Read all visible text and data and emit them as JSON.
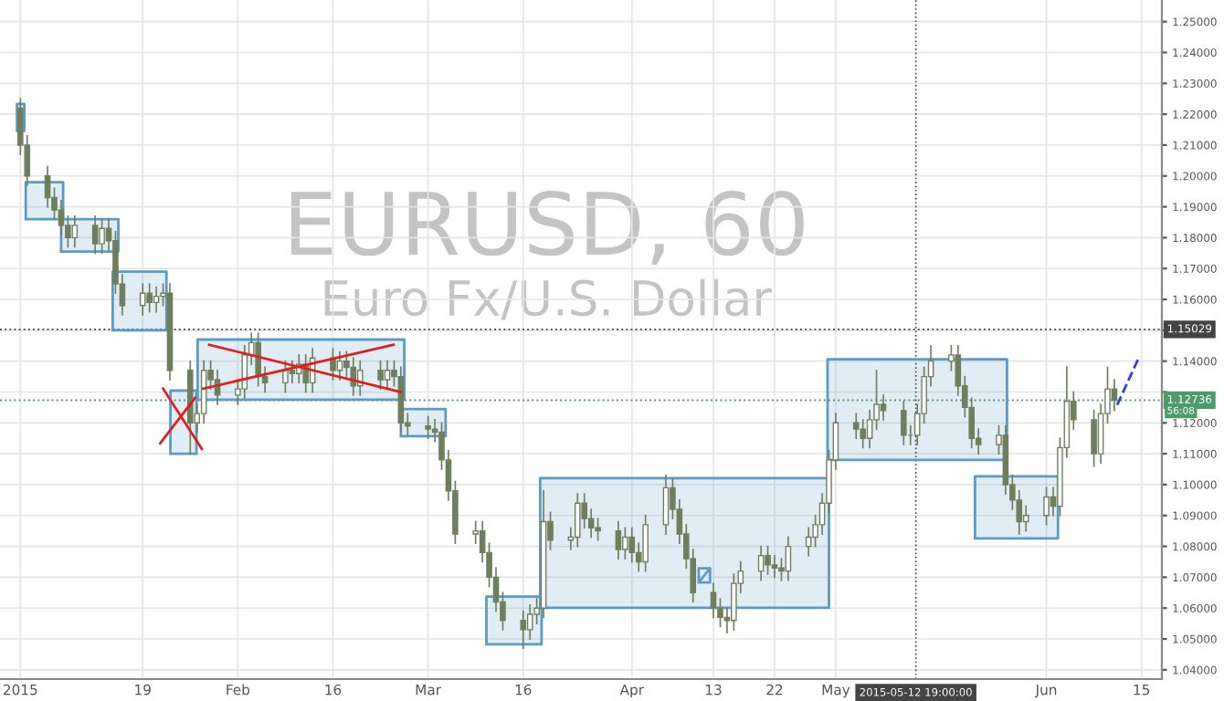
{
  "chart_data": {
    "type": "candlestick",
    "title": "EURUSD, 60",
    "subtitle": "Euro Fx/U.S. Dollar",
    "color": "#6f7f5e",
    "x": [
      "2015-01-01",
      "2015-01-02",
      "2015-01-05",
      "2015-01-06",
      "2015-01-07",
      "2015-01-08",
      "2015-01-09",
      "2015-01-12",
      "2015-01-13",
      "2015-01-14",
      "2015-01-15",
      "2015-01-16",
      "2015-01-19",
      "2015-01-20",
      "2015-01-21",
      "2015-01-22",
      "2015-01-23",
      "2015-01-26",
      "2015-01-27",
      "2015-01-28",
      "2015-01-29",
      "2015-01-30",
      "2015-02-02",
      "2015-02-03",
      "2015-02-04",
      "2015-02-05",
      "2015-02-06",
      "2015-02-09",
      "2015-02-10",
      "2015-02-11",
      "2015-02-12",
      "2015-02-13",
      "2015-02-16",
      "2015-02-17",
      "2015-02-18",
      "2015-02-19",
      "2015-02-20",
      "2015-02-23",
      "2015-02-24",
      "2015-02-25",
      "2015-02-26",
      "2015-02-27",
      "2015-03-02",
      "2015-03-03",
      "2015-03-04",
      "2015-03-05",
      "2015-03-06",
      "2015-03-09",
      "2015-03-10",
      "2015-03-11",
      "2015-03-12",
      "2015-03-13",
      "2015-03-16",
      "2015-03-17",
      "2015-03-18",
      "2015-03-19",
      "2015-03-20",
      "2015-03-23",
      "2015-03-24",
      "2015-03-25",
      "2015-03-26",
      "2015-03-27",
      "2015-03-30",
      "2015-03-31",
      "2015-04-01",
      "2015-04-02",
      "2015-04-03",
      "2015-04-06",
      "2015-04-07",
      "2015-04-08",
      "2015-04-09",
      "2015-04-10",
      "2015-04-13",
      "2015-04-14",
      "2015-04-15",
      "2015-04-16",
      "2015-04-17",
      "2015-04-20",
      "2015-04-21",
      "2015-04-22",
      "2015-04-23",
      "2015-04-24",
      "2015-04-27",
      "2015-04-28",
      "2015-04-29",
      "2015-04-30",
      "2015-05-01",
      "2015-05-04",
      "2015-05-05",
      "2015-05-06",
      "2015-05-07",
      "2015-05-08",
      "2015-05-11",
      "2015-05-12",
      "2015-05-13",
      "2015-05-14",
      "2015-05-15",
      "2015-05-18",
      "2015-05-19",
      "2015-05-20",
      "2015-05-21",
      "2015-05-22",
      "2015-05-25",
      "2015-05-26",
      "2015-05-27",
      "2015-05-28",
      "2015-05-29",
      "2015-06-01",
      "2015-06-02",
      "2015-06-03",
      "2015-06-04",
      "2015-06-05",
      "2015-06-08",
      "2015-06-09",
      "2015-06-10",
      "2015-06-11"
    ],
    "ohlc": [
      [
        1.222,
        1.225,
        1.207,
        1.21
      ],
      [
        1.21,
        1.213,
        1.197,
        1.2
      ],
      [
        1.2,
        1.203,
        1.19,
        1.193
      ],
      [
        1.193,
        1.196,
        1.186,
        1.189
      ],
      [
        1.189,
        1.192,
        1.181,
        1.184
      ],
      [
        1.184,
        1.187,
        1.177,
        1.18
      ],
      [
        1.18,
        1.187,
        1.177,
        1.184
      ],
      [
        1.184,
        1.187,
        1.175,
        1.178
      ],
      [
        1.178,
        1.186,
        1.175,
        1.183
      ],
      [
        1.183,
        1.186,
        1.176,
        1.179
      ],
      [
        1.179,
        1.182,
        1.162,
        1.165
      ],
      [
        1.165,
        1.168,
        1.155,
        1.158
      ],
      [
        1.158,
        1.165,
        1.155,
        1.162
      ],
      [
        1.162,
        1.165,
        1.156,
        1.159
      ],
      [
        1.159,
        1.164,
        1.156,
        1.161
      ],
      [
        1.161,
        1.165,
        1.158,
        1.162
      ],
      [
        1.162,
        1.165,
        1.134,
        1.137
      ],
      [
        1.137,
        1.14,
        1.11,
        1.12
      ],
      [
        1.12,
        1.126,
        1.117,
        1.123
      ],
      [
        1.123,
        1.14,
        1.12,
        1.137
      ],
      [
        1.137,
        1.14,
        1.131,
        1.134
      ],
      [
        1.134,
        1.137,
        1.126,
        1.129
      ],
      [
        1.129,
        1.134,
        1.126,
        1.131
      ],
      [
        1.131,
        1.145,
        1.128,
        1.142
      ],
      [
        1.142,
        1.149,
        1.139,
        1.146
      ],
      [
        1.146,
        1.149,
        1.132,
        1.135
      ],
      [
        1.135,
        1.138,
        1.13,
        1.133
      ],
      [
        1.133,
        1.14,
        1.13,
        1.137
      ],
      [
        1.137,
        1.14,
        1.133,
        1.136
      ],
      [
        1.136,
        1.142,
        1.133,
        1.139
      ],
      [
        1.139,
        1.142,
        1.13,
        1.133
      ],
      [
        1.133,
        1.144,
        1.13,
        1.141
      ],
      [
        1.141,
        1.144,
        1.134,
        1.137
      ],
      [
        1.137,
        1.143,
        1.134,
        1.14
      ],
      [
        1.14,
        1.143,
        1.135,
        1.138
      ],
      [
        1.138,
        1.141,
        1.129,
        1.132
      ],
      [
        1.132,
        1.14,
        1.129,
        1.137
      ],
      [
        1.137,
        1.14,
        1.131,
        1.134
      ],
      [
        1.134,
        1.14,
        1.131,
        1.137
      ],
      [
        1.137,
        1.14,
        1.132,
        1.135
      ],
      [
        1.135,
        1.138,
        1.117,
        1.12
      ],
      [
        1.12,
        1.123,
        1.116,
        1.119
      ],
      [
        1.119,
        1.122,
        1.115,
        1.118
      ],
      [
        1.118,
        1.121,
        1.114,
        1.117
      ],
      [
        1.117,
        1.12,
        1.105,
        1.108
      ],
      [
        1.108,
        1.111,
        1.095,
        1.098
      ],
      [
        1.098,
        1.101,
        1.081,
        1.084
      ],
      [
        1.084,
        1.088,
        1.081,
        1.085
      ],
      [
        1.085,
        1.088,
        1.075,
        1.078
      ],
      [
        1.078,
        1.081,
        1.067,
        1.07
      ],
      [
        1.07,
        1.073,
        1.059,
        1.062
      ],
      [
        1.062,
        1.065,
        1.053,
        1.056
      ],
      [
        1.056,
        1.059,
        1.047,
        1.053
      ],
      [
        1.053,
        1.061,
        1.05,
        1.058
      ],
      [
        1.058,
        1.063,
        1.055,
        1.06
      ],
      [
        1.06,
        1.098,
        1.057,
        1.088
      ],
      [
        1.088,
        1.091,
        1.079,
        1.082
      ],
      [
        1.082,
        1.086,
        1.079,
        1.083
      ],
      [
        1.083,
        1.097,
        1.08,
        1.094
      ],
      [
        1.094,
        1.097,
        1.086,
        1.089
      ],
      [
        1.089,
        1.092,
        1.083,
        1.086
      ],
      [
        1.086,
        1.089,
        1.082,
        1.085
      ],
      [
        1.085,
        1.088,
        1.076,
        1.079
      ],
      [
        1.079,
        1.086,
        1.076,
        1.083
      ],
      [
        1.083,
        1.086,
        1.075,
        1.078
      ],
      [
        1.078,
        1.081,
        1.072,
        1.075
      ],
      [
        1.075,
        1.09,
        1.072,
        1.087
      ],
      [
        1.087,
        1.103,
        1.084,
        1.099
      ],
      [
        1.099,
        1.102,
        1.089,
        1.092
      ],
      [
        1.092,
        1.095,
        1.081,
        1.084
      ],
      [
        1.084,
        1.087,
        1.073,
        1.076
      ],
      [
        1.076,
        1.079,
        1.062,
        1.065
      ],
      [
        1.065,
        1.068,
        1.057,
        1.06
      ],
      [
        1.06,
        1.063,
        1.054,
        1.057
      ],
      [
        1.057,
        1.06,
        1.052,
        1.056
      ],
      [
        1.056,
        1.071,
        1.053,
        1.068
      ],
      [
        1.068,
        1.075,
        1.065,
        1.072
      ],
      [
        1.072,
        1.08,
        1.069,
        1.077
      ],
      [
        1.077,
        1.08,
        1.071,
        1.074
      ],
      [
        1.074,
        1.077,
        1.07,
        1.073
      ],
      [
        1.073,
        1.076,
        1.069,
        1.072
      ],
      [
        1.072,
        1.083,
        1.069,
        1.08
      ],
      [
        1.08,
        1.086,
        1.077,
        1.083
      ],
      [
        1.083,
        1.09,
        1.08,
        1.087
      ],
      [
        1.087,
        1.097,
        1.084,
        1.094
      ],
      [
        1.094,
        1.111,
        1.091,
        1.108
      ],
      [
        1.108,
        1.123,
        1.105,
        1.12
      ],
      [
        1.12,
        1.123,
        1.115,
        1.118
      ],
      [
        1.118,
        1.121,
        1.112,
        1.115
      ],
      [
        1.115,
        1.124,
        1.112,
        1.121
      ],
      [
        1.121,
        1.137,
        1.118,
        1.126
      ],
      [
        1.126,
        1.129,
        1.121,
        1.124
      ],
      [
        1.124,
        1.127,
        1.113,
        1.116
      ],
      [
        1.116,
        1.119,
        1.113,
        1.116
      ],
      [
        1.116,
        1.126,
        1.113,
        1.123
      ],
      [
        1.123,
        1.138,
        1.12,
        1.135
      ],
      [
        1.135,
        1.145,
        1.132,
        1.14
      ],
      [
        1.14,
        1.145,
        1.137,
        1.142
      ],
      [
        1.142,
        1.145,
        1.129,
        1.132
      ],
      [
        1.132,
        1.135,
        1.122,
        1.125
      ],
      [
        1.125,
        1.128,
        1.112,
        1.115
      ],
      [
        1.115,
        1.118,
        1.11,
        1.113
      ],
      [
        1.113,
        1.119,
        1.11,
        1.116
      ],
      [
        1.116,
        1.119,
        1.097,
        1.1
      ],
      [
        1.1,
        1.103,
        1.092,
        1.095
      ],
      [
        1.095,
        1.098,
        1.084,
        1.088
      ],
      [
        1.088,
        1.093,
        1.085,
        1.09
      ],
      [
        1.09,
        1.099,
        1.087,
        1.096
      ],
      [
        1.096,
        1.099,
        1.09,
        1.093
      ],
      [
        1.093,
        1.115,
        1.09,
        1.112
      ],
      [
        1.112,
        1.138,
        1.109,
        1.127
      ],
      [
        1.127,
        1.13,
        1.118,
        1.121
      ],
      [
        1.121,
        1.124,
        1.106,
        1.11
      ],
      [
        1.11,
        1.126,
        1.107,
        1.123
      ],
      [
        1.123,
        1.138,
        1.12,
        1.131
      ],
      [
        1.131,
        1.134,
        1.124,
        1.1274
      ]
    ],
    "series": [
      {
        "type": "area",
        "color": "#5b9bc4",
        "x": [
          "2014-12-31T12:00",
          "2015-01-01T14:00",
          "2015-01-01T14:00",
          "2014-12-31T12:00",
          "2014-12-31T12:00"
        ],
        "values": [
          1.2146,
          1.2146,
          1.2233,
          1.2233,
          1.2146
        ]
      },
      {
        "type": "area",
        "color": "#5b9bc4",
        "x": [
          "2015-01-01T19:00",
          "2015-01-07T07:00",
          "2015-01-07T07:00",
          "2015-01-01T19:00",
          "2015-01-01T19:00"
        ],
        "values": [
          1.186,
          1.186,
          1.198,
          1.198,
          1.186
        ]
      },
      {
        "type": "area",
        "color": "#5b9bc4",
        "x": [
          "2015-01-07T00:00",
          "2015-01-15T10:00",
          "2015-01-15T10:00",
          "2015-01-07T00:00",
          "2015-01-07T00:00"
        ],
        "values": [
          1.1755,
          1.1755,
          1.186,
          1.186,
          1.1755
        ]
      },
      {
        "type": "area",
        "color": "#5b9bc4",
        "x": [
          "2015-01-14T14:00",
          "2015-01-22T12:00",
          "2015-01-22T12:00",
          "2015-01-14T14:00",
          "2015-01-14T14:00"
        ],
        "values": [
          1.15,
          1.15,
          1.169,
          1.169,
          1.15
        ]
      },
      {
        "type": "area",
        "color": "#5b9bc4",
        "x": [
          "2015-01-23T02:00",
          "2015-01-26T22:00",
          "2015-01-26T22:00",
          "2015-01-23T02:00",
          "2015-01-23T02:00"
        ],
        "values": [
          1.11,
          1.11,
          1.1305,
          1.1305,
          1.11
        ]
      },
      {
        "type": "area",
        "color": "#5b9bc4",
        "x": [
          "2015-01-27T02:00",
          "2015-02-26T12:00",
          "2015-02-26T12:00",
          "2015-01-27T02:00",
          "2015-01-27T02:00"
        ],
        "values": [
          1.1275,
          1.1275,
          1.147,
          1.147,
          1.1275
        ]
      },
      {
        "type": "area",
        "color": "#5b9bc4",
        "x": [
          "2015-02-26T00:00",
          "2015-03-04T14:00",
          "2015-03-04T14:00",
          "2015-02-26T00:00",
          "2015-02-26T00:00"
        ],
        "values": [
          1.1157,
          1.1157,
          1.1245,
          1.1245,
          1.1157
        ]
      },
      {
        "type": "area",
        "color": "#5b9bc4",
        "x": [
          "2015-03-10T14:00",
          "2015-03-18T17:00",
          "2015-03-18T17:00",
          "2015-03-10T14:00",
          "2015-03-10T14:00"
        ],
        "values": [
          1.0483,
          1.0483,
          1.0637,
          1.0637,
          1.0483
        ]
      },
      {
        "type": "area",
        "color": "#5b9bc4",
        "x": [
          "2015-03-18T12:00",
          "2015-04-30T00:00",
          "2015-04-30T00:00",
          "2015-03-18T12:00",
          "2015-03-18T12:00"
        ],
        "values": [
          1.0601,
          1.0601,
          1.1021,
          1.1021,
          1.0601
        ]
      },
      {
        "type": "line",
        "color": "#5b9bc4",
        "x": [
          "2015-04-10T20:00",
          "2015-04-12T12:00",
          "2015-04-12T12:00",
          "2015-04-10T20:00",
          "2015-04-10T20:00",
          "2015-04-12T12:00"
        ],
        "values": [
          1.0683,
          1.0683,
          1.0729,
          1.0729,
          1.0683,
          1.0729
        ]
      },
      {
        "type": "area",
        "color": "#5b9bc4",
        "x": [
          "2015-04-29T19:00",
          "2015-05-26T05:00",
          "2015-05-26T05:00",
          "2015-04-29T19:00",
          "2015-04-29T19:00"
        ],
        "values": [
          1.108,
          1.108,
          1.1406,
          1.1406,
          1.108
        ]
      },
      {
        "type": "area",
        "color": "#5b9bc4",
        "x": [
          "2015-05-21T12:00",
          "2015-06-02T17:00",
          "2015-06-02T17:00",
          "2015-05-21T12:00",
          "2015-05-21T12:00"
        ],
        "values": [
          1.0826,
          1.0826,
          1.1027,
          1.1027,
          1.0826
        ]
      },
      {
        "type": "line",
        "color": "#e02020",
        "x": [
          "2015-01-22T00:00",
          "2015-01-27T17:00"
        ],
        "values": [
          1.1311,
          1.1116
        ]
      },
      {
        "type": "line",
        "color": "#e02020",
        "x": [
          "2015-01-21T14:00",
          "2015-01-26T17:00"
        ],
        "values": [
          1.1134,
          1.1281
        ]
      },
      {
        "type": "line",
        "color": "#e02020",
        "x": [
          "2015-01-28T19:00",
          "2015-02-26T00:00"
        ],
        "values": [
          1.1453,
          1.13
        ]
      },
      {
        "type": "line",
        "color": "#e02020",
        "x": [
          "2015-01-27T22:00",
          "2015-02-24T22:00"
        ],
        "values": [
          1.1311,
          1.1453
        ]
      },
      {
        "type": "line",
        "color": "#3344cc",
        "line_style": "dashed",
        "x": [
          "2015-06-11T10:00",
          "2015-06-14T12:00"
        ],
        "values": [
          1.1258,
          1.1406
        ]
      }
    ],
    "ref_lines": [
      {
        "axis": "y",
        "value": 1.15029,
        "label": "1.15029",
        "color": "#444444",
        "line_style": "dotted"
      },
      {
        "axis": "y",
        "value": 1.12736,
        "label": "1.12736",
        "color": "#4e9a6a",
        "line_style": "dotted"
      },
      {
        "axis": "x",
        "value": "2015-05-12T19:00",
        "label": "2015-05-12 19:00:00",
        "color": "#444444",
        "line_style": "dotted"
      }
    ],
    "annotations": [
      "56:08"
    ],
    "xlim": [
      "2014-12-29",
      "2015-06-18"
    ],
    "ylim": [
      1.037,
      1.257
    ],
    "xticks": [
      {
        "value": "2015-01-01",
        "label": "2015"
      },
      {
        "value": "2015-01-19",
        "label": "19"
      },
      {
        "value": "2015-02-02",
        "label": "Feb"
      },
      {
        "value": "2015-02-16",
        "label": "16"
      },
      {
        "value": "2015-03-02",
        "label": "Mar"
      },
      {
        "value": "2015-03-16",
        "label": "16"
      },
      {
        "value": "2015-04-01",
        "label": "Apr"
      },
      {
        "value": "2015-04-13",
        "label": "13"
      },
      {
        "value": "2015-04-22",
        "label": "22"
      },
      {
        "value": "2015-05-01",
        "label": "May"
      },
      {
        "value": "2015-06-01",
        "label": "Jun"
      },
      {
        "value": "2015-06-15",
        "label": "15"
      }
    ],
    "yticks": [
      {
        "value": 1.04,
        "label": "1.04000"
      },
      {
        "value": 1.05,
        "label": "1.05000"
      },
      {
        "value": 1.06,
        "label": "1.06000"
      },
      {
        "value": 1.07,
        "label": "1.07000"
      },
      {
        "value": 1.08,
        "label": "1.08000"
      },
      {
        "value": 1.09,
        "label": "1.09000"
      },
      {
        "value": 1.1,
        "label": "1.10000"
      },
      {
        "value": 1.11,
        "label": "1.11000"
      },
      {
        "value": 1.12,
        "label": "1.12000"
      },
      {
        "value": 1.13,
        "label": null
      },
      {
        "value": 1.14,
        "label": "1.14000"
      },
      {
        "value": 1.15,
        "label": null
      },
      {
        "value": 1.16,
        "label": "1.16000"
      },
      {
        "value": 1.17,
        "label": "1.17000"
      },
      {
        "value": 1.18,
        "label": "1.18000"
      },
      {
        "value": 1.19,
        "label": "1.19000"
      },
      {
        "value": 1.2,
        "label": "1.20000"
      },
      {
        "value": 1.21,
        "label": "1.21000"
      },
      {
        "value": 1.22,
        "label": "1.22000"
      },
      {
        "value": 1.23,
        "label": "1.23000"
      },
      {
        "value": 1.24,
        "label": "1.24000"
      },
      {
        "value": 1.25,
        "label": "1.25000"
      }
    ],
    "grid": true
  }
}
